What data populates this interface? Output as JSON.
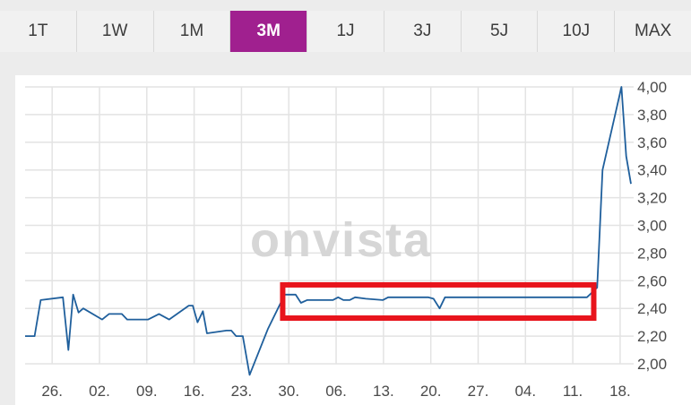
{
  "tabs": [
    {
      "label": "1T"
    },
    {
      "label": "1W"
    },
    {
      "label": "1M"
    },
    {
      "label": "3M"
    },
    {
      "label": "1J"
    },
    {
      "label": "3J"
    },
    {
      "label": "5J"
    },
    {
      "label": "10J"
    },
    {
      "label": "MAX"
    }
  ],
  "active_tab": "3M",
  "watermark": "onvista",
  "colors": {
    "accent": "#a0208f",
    "line": "#1f5f9c",
    "highlight": "#e8141c"
  },
  "chart_data": {
    "type": "line",
    "x_tick_labels": [
      "26.",
      "02.",
      "09.",
      "16.",
      "23.",
      "30.",
      "06.",
      "13.",
      "20.",
      "27.",
      "04.",
      "11.",
      "18."
    ],
    "x_tick_days": [
      4,
      11,
      18,
      25,
      32,
      39,
      46,
      53,
      60,
      67,
      74,
      81,
      88
    ],
    "y_tick_labels": [
      "2,00",
      "2,20",
      "2,40",
      "2,60",
      "2,80",
      "3,00",
      "3,20",
      "3,40",
      "3,60",
      "3,80",
      "4,00"
    ],
    "y_ticks": [
      2.0,
      2.2,
      2.4,
      2.6,
      2.8,
      3.0,
      3.2,
      3.4,
      3.6,
      3.8,
      4.0
    ],
    "ylim": [
      2.0,
      4.0
    ],
    "grid": true,
    "series": [
      {
        "points": [
          [
            0,
            2.2
          ],
          [
            1.4,
            2.2
          ],
          [
            2.3,
            2.46
          ],
          [
            5.6,
            2.48
          ],
          [
            6.4,
            2.1
          ],
          [
            7.1,
            2.5
          ],
          [
            7.9,
            2.37
          ],
          [
            8.6,
            2.4
          ],
          [
            11.4,
            2.32
          ],
          [
            12.4,
            2.36
          ],
          [
            14.3,
            2.36
          ],
          [
            15.1,
            2.32
          ],
          [
            18.2,
            2.32
          ],
          [
            19.8,
            2.36
          ],
          [
            21.3,
            2.32
          ],
          [
            24.2,
            2.42
          ],
          [
            24.8,
            2.42
          ],
          [
            25.5,
            2.3
          ],
          [
            26.3,
            2.38
          ],
          [
            26.9,
            2.22
          ],
          [
            29.8,
            2.24
          ],
          [
            30.5,
            2.24
          ],
          [
            31.2,
            2.2
          ],
          [
            32.2,
            2.2
          ],
          [
            33.2,
            1.92
          ],
          [
            35.9,
            2.25
          ],
          [
            38.4,
            2.5
          ],
          [
            39.2,
            2.5
          ],
          [
            40.0,
            2.5
          ],
          [
            40.8,
            2.44
          ],
          [
            41.7,
            2.46
          ],
          [
            45.5,
            2.46
          ],
          [
            46.3,
            2.48
          ],
          [
            47.1,
            2.46
          ],
          [
            48.0,
            2.46
          ],
          [
            48.8,
            2.48
          ],
          [
            50.4,
            2.47
          ],
          [
            52.9,
            2.46
          ],
          [
            53.7,
            2.48
          ],
          [
            56.6,
            2.48
          ],
          [
            59.6,
            2.48
          ],
          [
            60.4,
            2.47
          ],
          [
            61.3,
            2.4
          ],
          [
            62.1,
            2.48
          ],
          [
            63.8,
            2.48
          ],
          [
            69.7,
            2.48
          ],
          [
            76.9,
            2.48
          ],
          [
            83.1,
            2.48
          ],
          [
            84.6,
            2.55
          ],
          [
            85.4,
            3.4
          ],
          [
            88.2,
            4.0
          ],
          [
            88.9,
            3.5
          ],
          [
            89.6,
            3.3
          ]
        ]
      }
    ],
    "annotation": {
      "type": "rectangle",
      "x_range": [
        38.1,
        84.1
      ],
      "y_range": [
        2.33,
        2.57
      ]
    }
  }
}
